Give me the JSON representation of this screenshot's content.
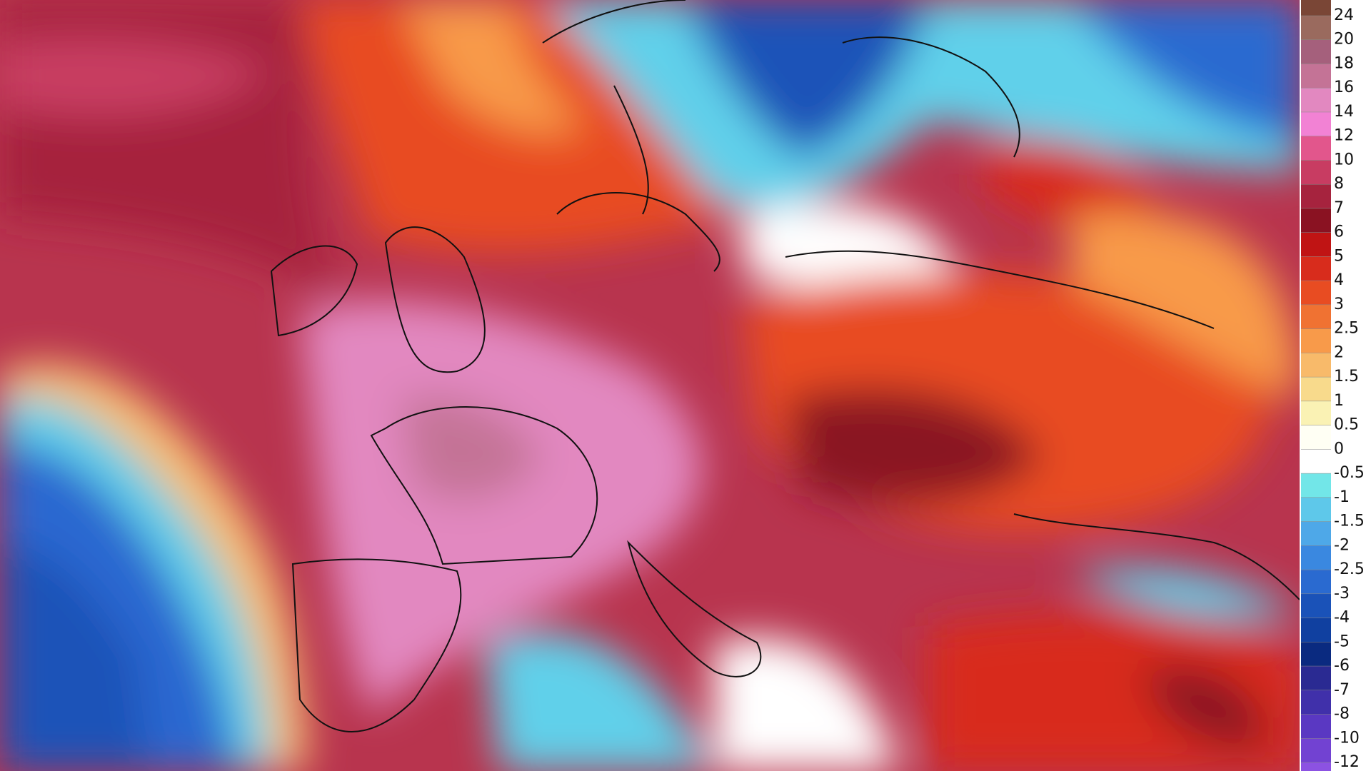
{
  "legend": {
    "labels": [
      24,
      20,
      18,
      16,
      14,
      12,
      10,
      8,
      7,
      6,
      5,
      4,
      3,
      2.5,
      2,
      1.5,
      1,
      0.5,
      0,
      -0.5,
      -1,
      -1.5,
      -2,
      -2.5,
      -3,
      -4,
      -5,
      -6,
      -7,
      -8,
      -10,
      -12
    ],
    "colors": [
      "#7a4636",
      "#9a6a5e",
      "#a5607c",
      "#c47396",
      "#e288c0",
      "#f282d4",
      "#e2568c",
      "#c83c62",
      "#a6233e",
      "#8a1222",
      "#c01414",
      "#d82c1c",
      "#e84c22",
      "#f07232",
      "#f89a4a",
      "#f8ba6a",
      "#f8da8c",
      "#faf2b4",
      "#fffff4",
      "#ffffff",
      "#72e6e8",
      "#5ec8ea",
      "#4ea8e8",
      "#3a88e0",
      "#2a6ad0",
      "#1a52b8",
      "#1040a0",
      "#0a2a80",
      "#2a2a92",
      "#4030aa",
      "#5a38c2",
      "#7242d2",
      "#8c52e2"
    ]
  }
}
